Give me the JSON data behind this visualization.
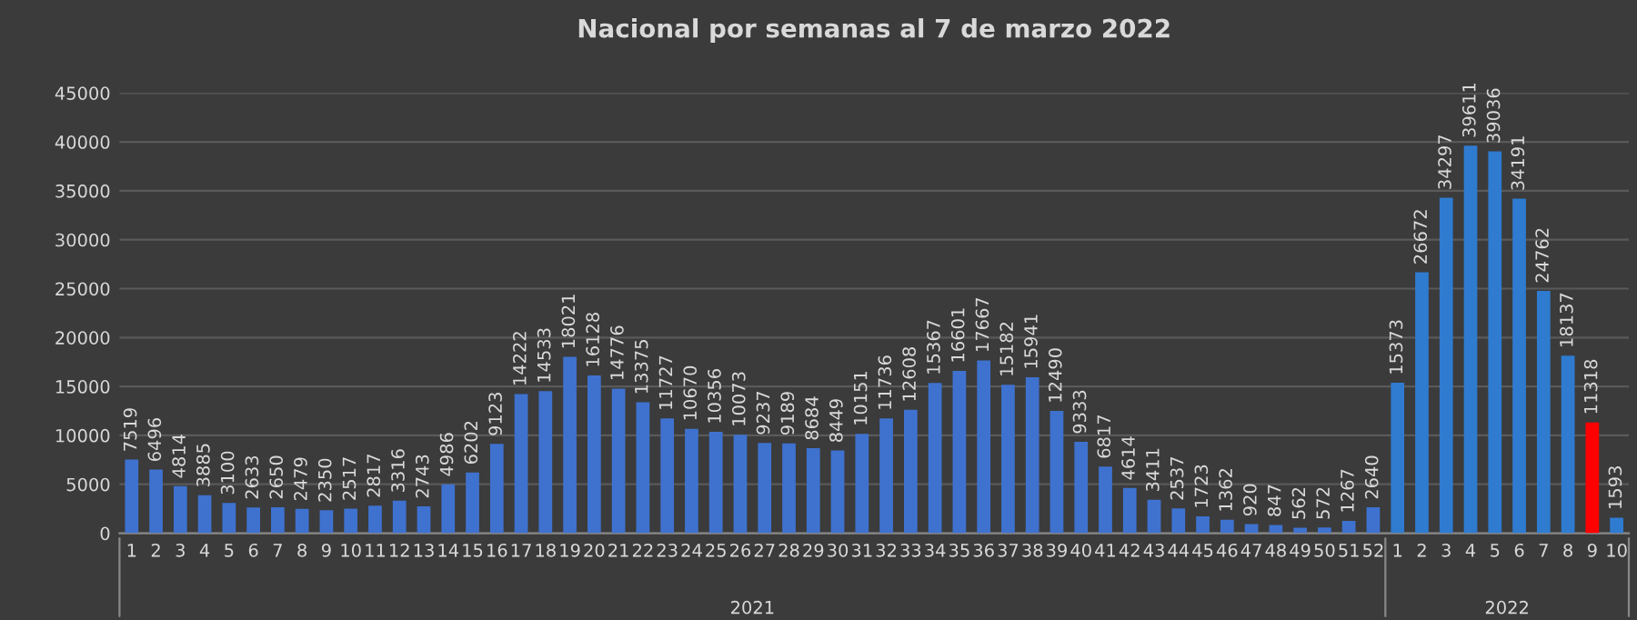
{
  "chart_data": {
    "type": "bar",
    "title": "Nacional por semanas al 7 de marzo 2022",
    "categories": [
      "1",
      "2",
      "3",
      "4",
      "5",
      "6",
      "7",
      "8",
      "9",
      "10",
      "11",
      "12",
      "13",
      "14",
      "15",
      "16",
      "17",
      "18",
      "19",
      "20",
      "21",
      "22",
      "23",
      "24",
      "25",
      "26",
      "27",
      "28",
      "29",
      "30",
      "31",
      "32",
      "33",
      "34",
      "35",
      "36",
      "37",
      "38",
      "39",
      "40",
      "41",
      "42",
      "43",
      "44",
      "45",
      "46",
      "47",
      "48",
      "49",
      "50",
      "51",
      "52",
      "1",
      "2",
      "3",
      "4",
      "5",
      "6",
      "7",
      "8",
      "9",
      "10"
    ],
    "values": [
      7519,
      6496,
      4814,
      3885,
      3100,
      2633,
      2650,
      2479,
      2350,
      2517,
      2817,
      3316,
      2743,
      4986,
      6202,
      9123,
      14222,
      14533,
      18021,
      16128,
      14776,
      13375,
      11727,
      10670,
      10356,
      10073,
      9237,
      9189,
      8684,
      8449,
      10151,
      11736,
      12608,
      15367,
      16601,
      17667,
      15182,
      15941,
      12490,
      9333,
      6817,
      4614,
      3411,
      2537,
      1723,
      1362,
      920,
      847,
      562,
      572,
      1267,
      2640,
      15373,
      26672,
      34297,
      39611,
      39036,
      34191,
      24762,
      18137,
      11318,
      1593
    ],
    "colors": [
      "#3f72cf",
      "#3f72cf",
      "#3f72cf",
      "#3f72cf",
      "#3f72cf",
      "#3f72cf",
      "#3f72cf",
      "#3f72cf",
      "#3f72cf",
      "#3f72cf",
      "#3f72cf",
      "#3f72cf",
      "#3f72cf",
      "#3f72cf",
      "#3f72cf",
      "#3f72cf",
      "#3f72cf",
      "#3f72cf",
      "#3f72cf",
      "#3f72cf",
      "#3f72cf",
      "#3f72cf",
      "#3f72cf",
      "#3f72cf",
      "#3f72cf",
      "#3f72cf",
      "#3f72cf",
      "#3f72cf",
      "#3f72cf",
      "#3f72cf",
      "#3f72cf",
      "#3f72cf",
      "#3f72cf",
      "#3f72cf",
      "#3f72cf",
      "#3f72cf",
      "#3f72cf",
      "#3f72cf",
      "#3f72cf",
      "#3f72cf",
      "#3f72cf",
      "#3f72cf",
      "#3f72cf",
      "#3f72cf",
      "#3f72cf",
      "#3f72cf",
      "#3f72cf",
      "#3f72cf",
      "#3f72cf",
      "#3f72cf",
      "#3f72cf",
      "#3f72cf",
      "#2f7bd0",
      "#2f7bd0",
      "#2f7bd0",
      "#2f7bd0",
      "#2f7bd0",
      "#2f7bd0",
      "#2f7bd0",
      "#2f7bd0",
      "#ff0000",
      "#2f7bd0"
    ],
    "ylim": [
      0,
      45000
    ],
    "yticks": [
      0,
      5000,
      10000,
      15000,
      20000,
      25000,
      30000,
      35000,
      40000,
      45000
    ],
    "grid": "y",
    "data_labels": true,
    "annotations": [
      "2021",
      "2022"
    ]
  }
}
